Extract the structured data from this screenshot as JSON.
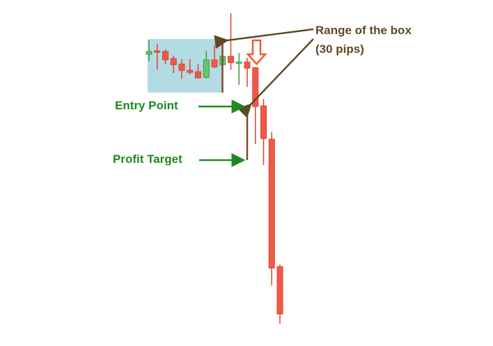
{
  "annotations": {
    "range_title": "Range of the box",
    "range_sub": "(30 pips)",
    "entry": "Entry Point",
    "target": "Profit Target"
  },
  "colors": {
    "bull": "#6cc36c",
    "bear": "#ee5a4a",
    "box": "#b3dbe3",
    "brown": "#7b4b2a",
    "annotation_green": "#1f8a1f",
    "annotation_brown": "#5b4a24"
  },
  "chart_data": {
    "type": "candlestick",
    "candles": [
      {
        "o": 422,
        "h": 442,
        "l": 412,
        "c": 426
      },
      {
        "o": 427,
        "h": 437,
        "l": 400,
        "c": 426
      },
      {
        "o": 426,
        "h": 429,
        "l": 408,
        "c": 414
      },
      {
        "o": 416,
        "h": 420,
        "l": 395,
        "c": 407
      },
      {
        "o": 408,
        "h": 415,
        "l": 387,
        "c": 399
      },
      {
        "o": 399,
        "h": 415,
        "l": 393,
        "c": 396
      },
      {
        "o": 397,
        "h": 408,
        "l": 388,
        "c": 388
      },
      {
        "o": 389,
        "h": 427,
        "l": 387,
        "c": 414
      },
      {
        "o": 414,
        "h": 435,
        "l": 402,
        "c": 404
      },
      {
        "o": 407,
        "h": 420,
        "l": 405,
        "c": 419
      },
      {
        "o": 419,
        "h": 481,
        "l": 400,
        "c": 410
      },
      {
        "o": 409,
        "h": 424,
        "l": 378,
        "c": 411
      },
      {
        "o": 411,
        "h": 417,
        "l": 375,
        "c": 402
      },
      {
        "o": 403,
        "h": 403,
        "l": 293,
        "c": 347
      },
      {
        "o": 348,
        "h": 358,
        "l": 263,
        "c": 301
      },
      {
        "o": 300,
        "h": 310,
        "l": 90,
        "c": 115
      },
      {
        "o": 117,
        "h": 120,
        "l": 35,
        "c": 49
      }
    ],
    "box": {
      "high": 444,
      "low": 367
    },
    "entry_price": 347,
    "target_price": 270
  }
}
